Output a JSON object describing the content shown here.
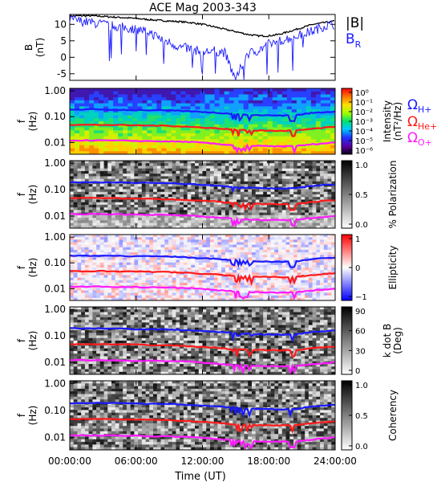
{
  "figure_title": "ACE Mag 2003-343",
  "xaxis": {
    "label": "Time (UT)",
    "ticks": [
      "00:00:00",
      "06:00:00",
      "12:00:00",
      "18:00:00",
      "24:00:00"
    ],
    "hours": [
      0,
      6,
      12,
      18,
      24
    ]
  },
  "legend": {
    "B_total": "|B|",
    "B_R_main": "B",
    "B_R_sub": "R",
    "H_main": "Ω",
    "H_sub": "H+",
    "He_main": "Ω",
    "He_sub": "He+",
    "O_main": "Ω",
    "O_sub": "O+"
  },
  "colors": {
    "B_total": "#000000",
    "B_R": "#1a1aff",
    "H_plus": "#1a1aff",
    "He_plus": "#ff1a1a",
    "O_plus": "#ff1aff"
  },
  "chart_data": [
    {
      "type": "line",
      "name": "field",
      "ylabel_main": "B",
      "ylabel_unit": "(nT)",
      "ylim": [
        -7,
        13
      ],
      "y_ticks": [
        10,
        5,
        0,
        -5
      ],
      "x_hours": [
        0,
        1,
        2,
        3,
        4,
        5,
        6,
        7,
        8,
        9,
        10,
        11,
        12,
        13,
        14,
        15,
        16,
        17,
        18,
        19,
        20,
        21,
        22,
        23,
        24
      ],
      "series": [
        {
          "name": "|B|",
          "values": [
            12.5,
            12.6,
            12.6,
            12.4,
            12.2,
            12.0,
            11.8,
            11.5,
            11.2,
            11.0,
            10.8,
            10.5,
            10.0,
            9.3,
            8.5,
            7.8,
            7.0,
            6.5,
            6.5,
            7.0,
            8.0,
            9.0,
            10.0,
            10.5,
            11.0
          ]
        },
        {
          "name": "B_R",
          "values": [
            11.5,
            11.0,
            10.5,
            10.0,
            9.5,
            9.0,
            8.5,
            8.0,
            6.0,
            4.5,
            3.0,
            2.5,
            1.5,
            2.0,
            1.5,
            -7.0,
            1.0,
            2.0,
            4.0,
            5.0,
            6.0,
            7.0,
            8.0,
            9.5,
            10.0
          ]
        }
      ]
    },
    {
      "type": "heatmap",
      "name": "intensity",
      "ylabel_main": "f",
      "ylabel_unit": "(Hz)",
      "y_ticks": [
        "1.00",
        "0.10",
        "0.01"
      ],
      "colorbar_label": "Intensity",
      "colorbar_unit": "(nT²/Hz)",
      "colorbar_ticks": [
        "10⁰",
        "10⁻¹",
        "10⁻²",
        "10⁻³",
        "10⁻⁴",
        "10⁻⁵",
        "10⁻⁶"
      ]
    },
    {
      "type": "heatmap",
      "name": "polarization",
      "ylabel_main": "f",
      "ylabel_unit": "(Hz)",
      "y_ticks": [
        "1.00",
        "0.10",
        "0.01"
      ],
      "colorbar_label": "% Polarization",
      "colorbar_ticks": [
        "1.0",
        "0.5",
        "0.0"
      ]
    },
    {
      "type": "heatmap",
      "name": "ellipticity",
      "ylabel_main": "f",
      "ylabel_unit": "(Hz)",
      "y_ticks": [
        "1.00",
        "0.10",
        "0.01"
      ],
      "colorbar_label": "Ellipticity",
      "colorbar_ticks": [
        "1",
        "0",
        "−1"
      ]
    },
    {
      "type": "heatmap",
      "name": "kdotb",
      "ylabel_main": "f",
      "ylabel_unit": "(Hz)",
      "y_ticks": [
        "1.00",
        "0.10",
        "0.01"
      ],
      "colorbar_label": "k dot B",
      "colorbar_unit": "(Deg)",
      "colorbar_ticks": [
        "90",
        "60",
        "30",
        "0"
      ]
    },
    {
      "type": "heatmap",
      "name": "coherency",
      "ylabel_main": "f",
      "ylabel_unit": "(Hz)",
      "y_ticks": [
        "1.00",
        "0.10",
        "0.01"
      ],
      "colorbar_label": "Coherency",
      "colorbar_ticks": [
        "1.0",
        "0.5",
        "0.0"
      ]
    }
  ],
  "gyrofrequency_hz": {
    "x_hours": [
      0,
      3,
      6,
      9,
      11,
      13,
      14.5,
      15.5,
      17,
      19,
      20.5,
      22,
      24
    ],
    "H_plus": [
      0.19,
      0.19,
      0.18,
      0.175,
      0.16,
      0.145,
      0.13,
      0.12,
      0.115,
      0.11,
      0.115,
      0.14,
      0.16
    ],
    "He_plus": [
      0.048,
      0.048,
      0.046,
      0.044,
      0.04,
      0.036,
      0.032,
      0.03,
      0.029,
      0.028,
      0.029,
      0.034,
      0.04
    ],
    "O_plus": [
      0.012,
      0.012,
      0.0115,
      0.011,
      0.0105,
      0.009,
      0.008,
      0.0075,
      0.0073,
      0.007,
      0.0073,
      0.0085,
      0.01
    ]
  }
}
